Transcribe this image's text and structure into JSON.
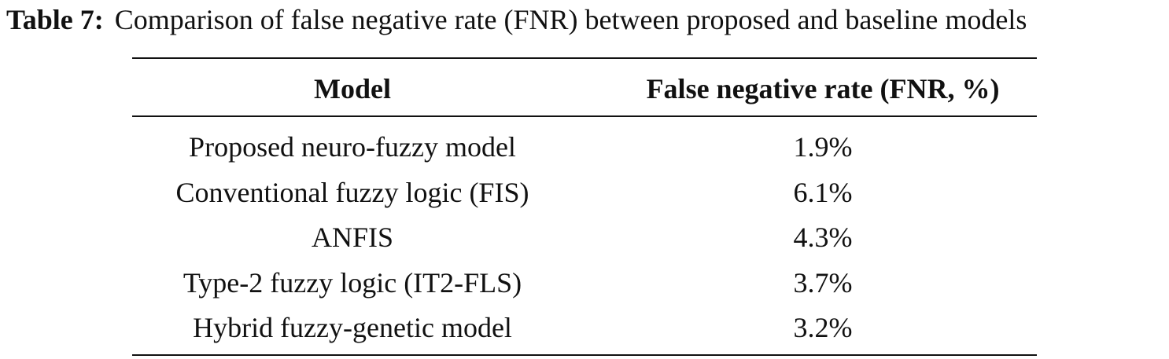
{
  "caption": {
    "label": "Table 7:",
    "text": "Comparison of false negative rate (FNR) between proposed and baseline models"
  },
  "table": {
    "header": [
      "Model",
      "False negative rate (FNR, %)"
    ],
    "rows": [
      [
        "Proposed neuro-fuzzy model",
        "1.9%"
      ],
      [
        "Conventional fuzzy logic (FIS)",
        "6.1%"
      ],
      [
        "ANFIS",
        "4.3%"
      ],
      [
        "Type-2 fuzzy logic (IT2-FLS)",
        "3.7%"
      ],
      [
        "Hybrid fuzzy-genetic model",
        "3.2%"
      ]
    ]
  }
}
